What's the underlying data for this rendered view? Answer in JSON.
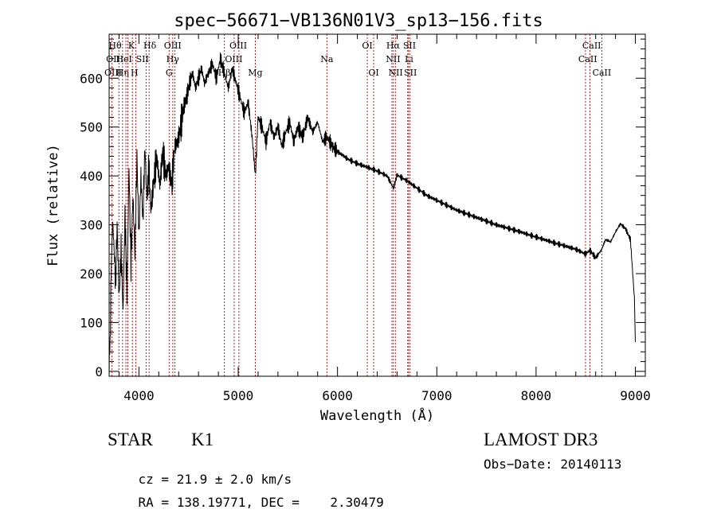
{
  "chart_data": {
    "type": "line",
    "title": "spec−56671−VB136N01V3_sp13−156.fits",
    "xlabel": "Wavelength (Å)",
    "ylabel": "Flux (relative)",
    "xlim": [
      3700,
      9100
    ],
    "ylim": [
      -10,
      690
    ],
    "xticks": [
      4000,
      5000,
      6000,
      7000,
      8000,
      9000
    ],
    "yticks": [
      0,
      100,
      200,
      300,
      400,
      500,
      600
    ],
    "series": [
      {
        "name": "flux",
        "x": [
          3700,
          3710,
          3720,
          3735,
          3750,
          3765,
          3780,
          3800,
          3820,
          3840,
          3860,
          3880,
          3900,
          3920,
          3940,
          3960,
          3980,
          4000,
          4020,
          4040,
          4060,
          4080,
          4100,
          4120,
          4150,
          4180,
          4210,
          4240,
          4270,
          4300,
          4330,
          4360,
          4390,
          4420,
          4450,
          4480,
          4510,
          4540,
          4570,
          4600,
          4630,
          4660,
          4700,
          4740,
          4780,
          4820,
          4861,
          4900,
          4940,
          4980,
          5020,
          5060,
          5100,
          5140,
          5172,
          5200,
          5240,
          5280,
          5320,
          5360,
          5400,
          5440,
          5480,
          5520,
          5560,
          5600,
          5650,
          5700,
          5750,
          5800,
          5850,
          5893,
          5950,
          6000,
          6100,
          6200,
          6300,
          6400,
          6500,
          6563,
          6600,
          6700,
          6800,
          6900,
          7000,
          7200,
          7400,
          7600,
          7800,
          8000,
          8200,
          8400,
          8498,
          8542,
          8600,
          8662,
          8700,
          8750,
          8800,
          8850,
          8900,
          8950,
          8990,
          9000
        ],
        "values": [
          5,
          60,
          200,
          310,
          250,
          180,
          300,
          150,
          250,
          120,
          320,
          160,
          420,
          220,
          360,
          240,
          440,
          280,
          400,
          310,
          460,
          350,
          420,
          330,
          390,
          440,
          380,
          450,
          400,
          420,
          380,
          460,
          470,
          500,
          540,
          560,
          590,
          610,
          580,
          600,
          620,
          590,
          610,
          630,
          600,
          640,
          610,
          580,
          620,
          590,
          560,
          530,
          550,
          480,
          400,
          520,
          500,
          470,
          510,
          480,
          500,
          460,
          490,
          510,
          470,
          500,
          480,
          520,
          490,
          510,
          470,
          480,
          460,
          450,
          435,
          425,
          418,
          410,
          400,
          375,
          402,
          390,
          375,
          360,
          350,
          330,
          315,
          300,
          288,
          275,
          262,
          250,
          240,
          248,
          232,
          250,
          270,
          265,
          285,
          302,
          292,
          270,
          150,
          60
        ]
      }
    ],
    "lines": [
      {
        "wavelength": 3727,
        "labels": [
          "OII"
        ]
      },
      {
        "wavelength": 3798,
        "labels": [
          "Hθ"
        ]
      },
      {
        "wavelength": 3835,
        "labels": [
          "Hη"
        ]
      },
      {
        "wavelength": 3869,
        "labels": [
          "NeIII"
        ]
      },
      {
        "wavelength": 3889,
        "labels": [
          "HeI"
        ]
      },
      {
        "wavelength": 3934,
        "labels": [
          "K"
        ]
      },
      {
        "wavelength": 3969,
        "labels": [
          "H"
        ]
      },
      {
        "wavelength": 4072,
        "labels": [
          "SII"
        ]
      },
      {
        "wavelength": 4102,
        "labels": [
          "Hδ"
        ]
      },
      {
        "wavelength": 4304,
        "labels": [
          "G"
        ]
      },
      {
        "wavelength": 4341,
        "labels": [
          "Hγ"
        ]
      },
      {
        "wavelength": 4363,
        "labels": [
          "OIII"
        ]
      },
      {
        "wavelength": 4861,
        "labels": [
          "Hβ"
        ]
      },
      {
        "wavelength": 4959,
        "labels": [
          "OIII"
        ]
      },
      {
        "wavelength": 5007,
        "labels": [
          "OIII"
        ]
      },
      {
        "wavelength": 5172,
        "labels": [
          "Mg"
        ]
      },
      {
        "wavelength": 5893,
        "labels": [
          "Na"
        ]
      },
      {
        "wavelength": 6300,
        "labels": [
          "OI"
        ]
      },
      {
        "wavelength": 6364,
        "labels": [
          "OI"
        ]
      },
      {
        "wavelength": 6548,
        "labels": [
          "NII"
        ]
      },
      {
        "wavelength": 6563,
        "labels": [
          "Hα"
        ]
      },
      {
        "wavelength": 6583,
        "labels": [
          "NII"
        ]
      },
      {
        "wavelength": 6707,
        "labels": [
          "Li"
        ]
      },
      {
        "wavelength": 6716,
        "labels": [
          "SII"
        ]
      },
      {
        "wavelength": 6731,
        "labels": [
          "SII"
        ]
      },
      {
        "wavelength": 8498,
        "labels": [
          "CaII"
        ]
      },
      {
        "wavelength": 8542,
        "labels": [
          "CaII"
        ]
      },
      {
        "wavelength": 8662,
        "labels": [
          "CaII"
        ]
      }
    ],
    "line_labels": [
      {
        "text": "Hθ",
        "row": 1,
        "wavelength": 3760
      },
      {
        "text": "K",
        "row": 1,
        "wavelength": 3925
      },
      {
        "text": "Hδ",
        "row": 1,
        "wavelength": 4110
      },
      {
        "text": "OIII",
        "row": 1,
        "wavelength": 4340
      },
      {
        "text": "OIII",
        "row": 1,
        "wavelength": 5000
      },
      {
        "text": "OI",
        "row": 1,
        "wavelength": 6300
      },
      {
        "text": "Hα",
        "row": 1,
        "wavelength": 6560
      },
      {
        "text": "SII",
        "row": 1,
        "wavelength": 6725
      },
      {
        "text": "CaII",
        "row": 1,
        "wavelength": 8560
      },
      {
        "text": "OII",
        "row": 2,
        "wavelength": 3740
      },
      {
        "text": "HeI",
        "row": 2,
        "wavelength": 3850
      },
      {
        "text": "SII",
        "row": 2,
        "wavelength": 4035
      },
      {
        "text": "Hγ",
        "row": 2,
        "wavelength": 4340
      },
      {
        "text": "OIII",
        "row": 2,
        "wavelength": 4955
      },
      {
        "text": "Na",
        "row": 2,
        "wavelength": 5893
      },
      {
        "text": "NII",
        "row": 2,
        "wavelength": 6560
      },
      {
        "text": "Li",
        "row": 2,
        "wavelength": 6720
      },
      {
        "text": "CaII",
        "row": 2,
        "wavelength": 8520
      },
      {
        "text": "OIII",
        "row": 3,
        "wavelength": 3740
      },
      {
        "text": "Hη",
        "row": 3,
        "wavelength": 3835
      },
      {
        "text": "H",
        "row": 3,
        "wavelength": 3955
      },
      {
        "text": "G",
        "row": 3,
        "wavelength": 4304
      },
      {
        "text": "Hβ",
        "row": 3,
        "wavelength": 4861
      },
      {
        "text": "Mg",
        "row": 3,
        "wavelength": 5172
      },
      {
        "text": "OI",
        "row": 3,
        "wavelength": 6364
      },
      {
        "text": "NII",
        "row": 3,
        "wavelength": 6585
      },
      {
        "text": "SII",
        "row": 3,
        "wavelength": 6735
      },
      {
        "text": "CaII",
        "row": 3,
        "wavelength": 8662
      }
    ],
    "colors": {
      "spectrum": "#000000",
      "lines": "#c00000",
      "axes": "#000000"
    }
  },
  "info": {
    "class": "STAR",
    "subclass": "K1",
    "survey": "LAMOST DR3",
    "cz": "cz = 21.9 ± 2.0 km/s",
    "obs_date": "Obs−Date: 20140113",
    "radec": "RA = 138.19771, DEC =    2.30479"
  }
}
